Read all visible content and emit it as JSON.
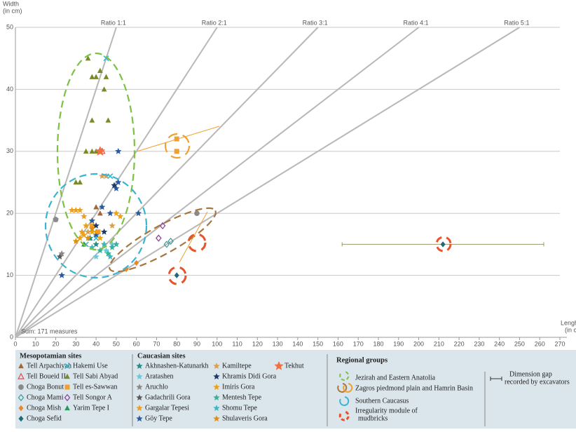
{
  "chart_data": {
    "type": "scatter",
    "y_label": [
      "Width",
      "(in cm)"
    ],
    "x_label": [
      "Lenght",
      "(in cm)"
    ],
    "annotation": "Sum: 171 measures",
    "xlim": [
      0,
      270
    ],
    "ylim": [
      0,
      50
    ],
    "xticks": [
      0,
      10,
      20,
      30,
      40,
      50,
      60,
      70,
      80,
      90,
      100,
      110,
      120,
      130,
      140,
      150,
      160,
      170,
      180,
      190,
      200,
      210,
      220,
      230,
      240,
      250,
      260,
      270
    ],
    "yticks": [
      0,
      10,
      20,
      30,
      40,
      50
    ],
    "grid": true,
    "ratio_lines": [
      {
        "label": "Ratio 1:1",
        "ratio": 1
      },
      {
        "label": "Ratio 2:1",
        "ratio": 2
      },
      {
        "label": "Ratio 3:1",
        "ratio": 3
      },
      {
        "label": "Ratio 4:1",
        "ratio": 4
      },
      {
        "label": "Ratio 5:1",
        "ratio": 5
      }
    ],
    "legend_headings": [
      "Mesopotamian sites",
      "Caucasian sites",
      "Regional groups"
    ],
    "regional_groups": [
      "Jezirah and Eastern Anatolia",
      "Zagros piedmond plain and Hamrin Basin",
      "Southern Caucasus",
      [
        "Irregularity module of",
        "mudbricks"
      ]
    ],
    "gap_label": [
      "Dimension gap",
      "recorded by excavators"
    ],
    "series": [
      {
        "name": "Tell Arpachiyah",
        "marker": "triangle",
        "color": "#a0683a",
        "x": [
          40,
          42
        ],
        "values": [
          21,
          20
        ]
      },
      {
        "name": "Tell Boueid II",
        "marker": "triangle-open",
        "color": "#e05050",
        "x": [
          43
        ],
        "values": [
          30
        ]
      },
      {
        "name": "Choga Bonut",
        "marker": "dot",
        "color": "#8a8a8a",
        "x": [
          20,
          90
        ],
        "values": [
          19,
          20
        ]
      },
      {
        "name": "Choga Mami",
        "marker": "diamond-open",
        "color": "#3a9a9a",
        "x": [
          75,
          77
        ],
        "values": [
          15,
          15.5
        ]
      },
      {
        "name": "Choga Mish",
        "marker": "diamond",
        "color": "#e8862a",
        "x": [
          55,
          60
        ],
        "values": [
          11,
          12
        ]
      },
      {
        "name": "Choga Sefid",
        "marker": "diamond",
        "color": "#1e6a7a",
        "x": [
          80,
          212
        ],
        "values": [
          10,
          15
        ],
        "xerr": [
          null,
          50
        ]
      },
      {
        "name": "Hakemi Use",
        "marker": "x",
        "color": "#3bb4d0",
        "x": [
          45,
          47,
          40,
          35
        ],
        "values": [
          45,
          26,
          16,
          15
        ]
      },
      {
        "name": "Tell Sabi Abyad",
        "marker": "triangle",
        "color": "#7a8a2a",
        "x": [
          36,
          38,
          40,
          42,
          44,
          45,
          38,
          46,
          35,
          38,
          40,
          30,
          32
        ],
        "values": [
          45,
          42,
          42,
          43,
          40,
          42,
          35,
          35,
          30,
          30,
          30,
          25,
          25
        ]
      },
      {
        "name": "Tell es-Sawwan",
        "marker": "square",
        "color": "#f0a030",
        "x": [
          80,
          80,
          38,
          41
        ],
        "values": [
          32,
          30,
          18,
          17
        ]
      },
      {
        "name": "Tell Songor A",
        "marker": "diamond-open",
        "color": "#8a3a9a",
        "x": [
          73,
          71
        ],
        "values": [
          18,
          16
        ]
      },
      {
        "name": "Yarim Tepe I",
        "marker": "triangle",
        "color": "#2a9a5a",
        "x": [
          34,
          37
        ],
        "values": [
          15,
          16
        ]
      },
      {
        "name": "Akhnashen-Katunarkh",
        "marker": "star",
        "color": "#2a8a8a",
        "x": [
          37,
          40
        ],
        "values": [
          16,
          15
        ]
      },
      {
        "name": "Aratashen",
        "marker": "star",
        "color": "#6ac8d8",
        "x": [
          40,
          45,
          48
        ],
        "values": [
          13,
          14,
          15
        ]
      },
      {
        "name": "Aruchlo",
        "marker": "star",
        "color": "#8a8a8a",
        "x": [
          23,
          20
        ],
        "values": [
          13.5,
          19
        ]
      },
      {
        "name": "Gadachrili Gora",
        "marker": "star",
        "color": "#5a5a5a",
        "x": [
          22
        ],
        "values": [
          13
        ]
      },
      {
        "name": "Gargalar Tepesi",
        "marker": "star",
        "color": "#e8a020",
        "x": [
          28,
          30,
          32,
          34,
          35,
          33
        ],
        "values": [
          20.5,
          20.5,
          20.5,
          19.5,
          18,
          17
        ]
      },
      {
        "name": "Göy Tepe",
        "marker": "star",
        "color": "#2a5aa0",
        "x": [
          23,
          38,
          40,
          43,
          47,
          50,
          51,
          61,
          51
        ],
        "values": [
          10,
          18.8,
          16.5,
          21,
          20,
          24,
          25,
          20,
          30
        ]
      },
      {
        "name": "Kamiltepe",
        "marker": "star",
        "color": "#d8a050",
        "x": [
          43,
          45,
          48,
          36
        ],
        "values": [
          26,
          26,
          18,
          17
        ]
      },
      {
        "name": "Khramis Didi Gora",
        "marker": "star",
        "color": "#1a3a6a",
        "x": [
          49,
          40,
          44
        ],
        "values": [
          24.5,
          18,
          17
        ]
      },
      {
        "name": "Imiris Gora",
        "marker": "star",
        "color": "#f0a010",
        "x": [
          38,
          40,
          42,
          44,
          50,
          52,
          32,
          34
        ],
        "values": [
          17,
          17,
          16,
          15,
          20,
          19.5,
          16,
          16.5
        ]
      },
      {
        "name": "Mentesh Tepe",
        "marker": "star",
        "color": "#3ab09a",
        "x": [
          42,
          46,
          48,
          50
        ],
        "values": [
          14,
          13.5,
          14.5,
          15
        ]
      },
      {
        "name": "Shomu Tepe",
        "marker": "star",
        "color": "#3abac0",
        "x": [
          38,
          44,
          47
        ],
        "values": [
          14.5,
          15,
          13
        ]
      },
      {
        "name": "Shulaveris Gora",
        "marker": "star",
        "color": "#e09010",
        "x": [
          30,
          36,
          38
        ],
        "values": [
          15.5,
          16,
          17.5
        ]
      },
      {
        "name": "Tekhut",
        "marker": "star",
        "color": "#f07040",
        "x": [
          42
        ],
        "values": [
          30
        ]
      }
    ]
  }
}
